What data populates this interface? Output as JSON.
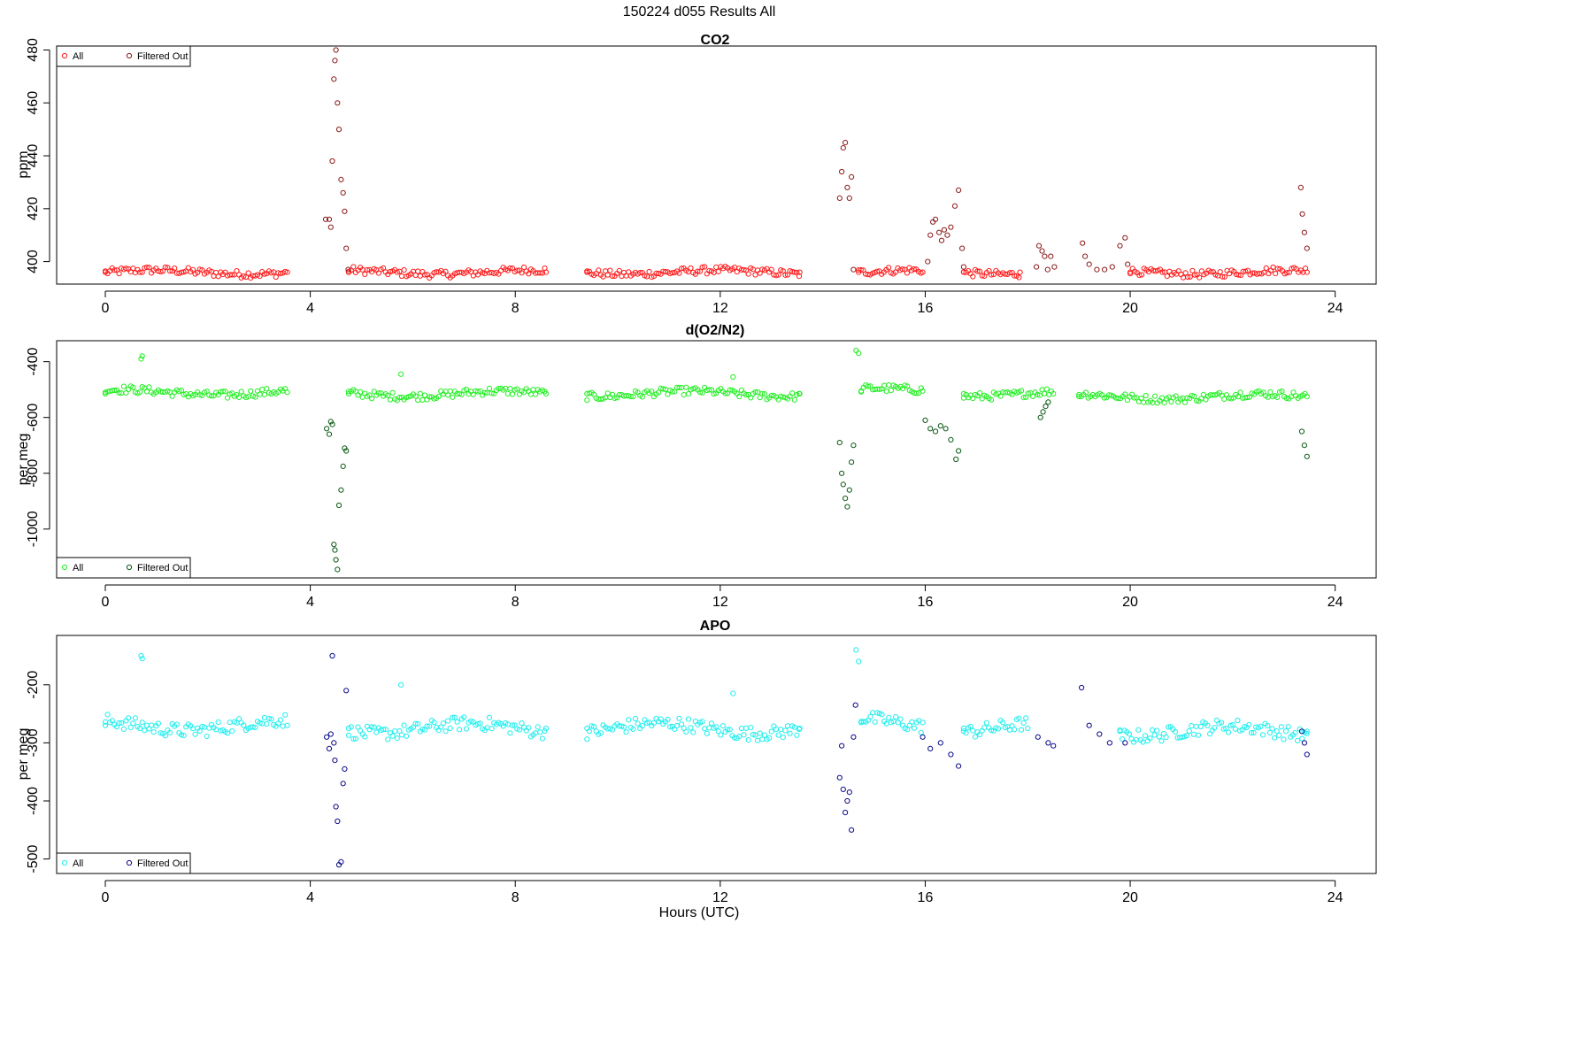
{
  "figure_title": "150224   d055   Results All",
  "x_axis_label": "Hours (UTC)",
  "colors": {
    "co2_all": "#ff1a1a",
    "co2_filtered": "#8b1a1a",
    "o2n2_all": "#22ee22",
    "o2n2_filtered": "#0b5a14",
    "apo_all": "#22eeee",
    "apo_filtered": "#0a0a8a",
    "axis": "#000000"
  },
  "chart_data": [
    {
      "type": "scatter",
      "title": "CO2",
      "xlabel": "",
      "ylabel": "ppm",
      "xlim": [
        -0.95,
        24.8
      ],
      "ylim": [
        391.5,
        481.5
      ],
      "xticks": [
        "0",
        "4",
        "8",
        "12",
        "16",
        "20",
        "24"
      ],
      "yticks": [
        "400",
        "420",
        "440",
        "460",
        "480"
      ],
      "grid": false,
      "legend_placement": "top-left",
      "legend": [
        {
          "label": "All",
          "color": "#ff1a1a"
        },
        {
          "label": "Filtered Out",
          "color": "#8b1a1a"
        }
      ],
      "baseline_segments": [
        {
          "x": [
            0.0,
            3.55
          ],
          "y": 396.0
        },
        {
          "x": [
            4.75,
            8.6
          ],
          "y": 396.0
        },
        {
          "x": [
            9.4,
            13.55
          ],
          "y": 396.0
        },
        {
          "x": [
            14.7,
            15.95
          ],
          "y": 396.0
        },
        {
          "x": [
            16.75,
            17.85
          ],
          "y": 396.0
        },
        {
          "x": [
            20.0,
            23.45
          ],
          "y": 396.0
        }
      ],
      "series": [
        {
          "name": "All",
          "x": [
            0.0,
            3.55,
            4.75,
            8.6,
            9.4,
            13.55,
            14.7,
            15.95,
            16.75,
            17.85,
            20.0,
            23.45
          ],
          "y": [
            396,
            396,
            396,
            396,
            396,
            396,
            396,
            396,
            396,
            396,
            396,
            396
          ]
        },
        {
          "name": "Filtered Out",
          "x": [
            4.3,
            4.37,
            4.4,
            4.43,
            4.46,
            4.48,
            4.5,
            4.53,
            4.56,
            4.6,
            4.64,
            4.67,
            4.7,
            4.74,
            14.33,
            14.37,
            14.4,
            14.44,
            14.48,
            14.52,
            14.56,
            14.6,
            16.05,
            16.1,
            16.15,
            16.2,
            16.27,
            16.32,
            16.37,
            16.43,
            16.5,
            16.58,
            16.65,
            16.72,
            16.75,
            18.17,
            18.22,
            18.28,
            18.33,
            18.39,
            18.45,
            18.52,
            19.07,
            19.12,
            19.2,
            19.35,
            19.5,
            19.65,
            19.8,
            19.9,
            19.95,
            23.33,
            23.36,
            23.4,
            23.45
          ],
          "y": [
            416,
            416,
            413,
            438,
            469,
            476,
            480,
            460,
            450,
            431,
            426,
            419,
            405,
            397,
            424,
            434,
            443,
            445,
            428,
            424,
            432,
            397,
            400,
            410,
            415,
            416,
            411,
            408,
            412,
            410,
            413,
            421,
            427,
            405,
            398,
            398,
            406,
            404,
            402,
            397,
            402,
            398,
            407,
            402,
            399,
            397,
            397,
            398,
            406,
            409,
            399,
            428,
            418,
            411,
            405
          ]
        }
      ]
    },
    {
      "type": "scatter",
      "title": "d(O2/N2)",
      "xlabel": "",
      "ylabel": "per meg",
      "xlim": [
        -0.95,
        24.8
      ],
      "ylim": [
        -1175,
        -325
      ],
      "xticks": [
        "0",
        "4",
        "8",
        "12",
        "16",
        "20",
        "24"
      ],
      "yticks": [
        "-400",
        "-600",
        "-800",
        "-1000"
      ],
      "grid": false,
      "legend_placement": "bottom-left",
      "legend": [
        {
          "label": "All",
          "color": "#22ee22"
        },
        {
          "label": "Filtered Out",
          "color": "#0b5a14"
        }
      ],
      "baseline_segments": [
        {
          "x": [
            0.0,
            3.55
          ],
          "y": -510
        },
        {
          "x": [
            4.75,
            8.6
          ],
          "y": -515
        },
        {
          "x": [
            9.4,
            13.55
          ],
          "y": -515
        },
        {
          "x": [
            14.75,
            15.95
          ],
          "y": -505
        },
        {
          "x": [
            16.75,
            18.5
          ],
          "y": -515
        },
        {
          "x": [
            19.0,
            23.45
          ],
          "y": -525
        }
      ],
      "series": [
        {
          "name": "All",
          "x": [
            0.0,
            3.55,
            0.7,
            0.72,
            4.75,
            8.6,
            5.77,
            9.4,
            13.55,
            12.25,
            14.75,
            15.95,
            14.65,
            14.7,
            16.75,
            18.5,
            19.0,
            23.45
          ],
          "y": [
            -510,
            -510,
            -390,
            -380,
            -515,
            -515,
            -445,
            -515,
            -515,
            -455,
            -505,
            -505,
            -360,
            -370,
            -515,
            -515,
            -525,
            -525
          ]
        },
        {
          "name": "Filtered Out",
          "x": [
            4.32,
            4.37,
            4.4,
            4.43,
            4.46,
            4.48,
            4.5,
            4.53,
            4.56,
            4.6,
            4.64,
            4.67,
            4.7,
            14.33,
            14.37,
            14.4,
            14.44,
            14.48,
            14.52,
            14.56,
            14.6,
            16.0,
            16.1,
            16.2,
            16.3,
            16.4,
            16.5,
            16.6,
            16.65,
            18.25,
            18.3,
            18.35,
            18.4,
            23.35,
            23.4,
            23.45
          ],
          "y": [
            -640,
            -660,
            -615,
            -625,
            -1055,
            -1075,
            -1110,
            -1145,
            -915,
            -860,
            -775,
            -710,
            -720,
            -690,
            -800,
            -840,
            -890,
            -920,
            -860,
            -760,
            -700,
            -610,
            -640,
            -650,
            -630,
            -640,
            -680,
            -750,
            -720,
            -600,
            -580,
            -560,
            -545,
            -650,
            -700,
            -740
          ]
        }
      ]
    },
    {
      "type": "scatter",
      "title": "APO",
      "xlabel": "Hours (UTC)",
      "ylabel": "per meg",
      "xlim": [
        -0.95,
        24.8
      ],
      "ylim": [
        -525,
        -115
      ],
      "xticks": [
        "0",
        "4",
        "8",
        "12",
        "16",
        "20",
        "24"
      ],
      "yticks": [
        "-200",
        "-300",
        "-400",
        "-500"
      ],
      "grid": false,
      "legend_placement": "bottom-left",
      "legend": [
        {
          "label": "All",
          "color": "#22eeee"
        },
        {
          "label": "Filtered Out",
          "color": "#0a0a8a"
        }
      ],
      "baseline_segments": [
        {
          "x": [
            0.0,
            3.55
          ],
          "y": -270
        },
        {
          "x": [
            4.75,
            8.6
          ],
          "y": -275
        },
        {
          "x": [
            9.4,
            13.55
          ],
          "y": -275
        },
        {
          "x": [
            14.75,
            15.95
          ],
          "y": -265
        },
        {
          "x": [
            16.75,
            18.0
          ],
          "y": -275
        },
        {
          "x": [
            19.8,
            23.45
          ],
          "y": -280
        }
      ],
      "series": [
        {
          "name": "All",
          "x": [
            0.0,
            3.55,
            0.7,
            0.72,
            4.75,
            8.6,
            5.77,
            9.4,
            13.55,
            12.25,
            14.75,
            15.95,
            14.65,
            14.7,
            16.75,
            18.0,
            19.8,
            23.45
          ],
          "y": [
            -270,
            -270,
            -150,
            -155,
            -275,
            -275,
            -200,
            -275,
            -275,
            -215,
            -265,
            -265,
            -140,
            -160,
            -275,
            -275,
            -280,
            -280
          ]
        },
        {
          "name": "Filtered Out",
          "x": [
            4.32,
            4.37,
            4.4,
            4.43,
            4.46,
            4.48,
            4.5,
            4.53,
            4.56,
            4.6,
            4.64,
            4.67,
            4.7,
            14.33,
            14.37,
            14.4,
            14.44,
            14.48,
            14.52,
            14.56,
            14.6,
            14.64,
            15.95,
            16.1,
            16.3,
            16.5,
            16.65,
            18.2,
            18.4,
            18.5,
            19.05,
            19.2,
            19.4,
            19.6,
            19.9,
            23.35,
            23.4,
            23.45
          ],
          "y": [
            -290,
            -310,
            -285,
            -150,
            -300,
            -330,
            -410,
            -435,
            -510,
            -505,
            -370,
            -345,
            -210,
            -360,
            -305,
            -380,
            -420,
            -400,
            -385,
            -450,
            -290,
            -235,
            -290,
            -310,
            -300,
            -320,
            -340,
            -290,
            -300,
            -305,
            -205,
            -270,
            -285,
            -300,
            -300,
            -280,
            -300,
            -320
          ]
        }
      ]
    }
  ]
}
